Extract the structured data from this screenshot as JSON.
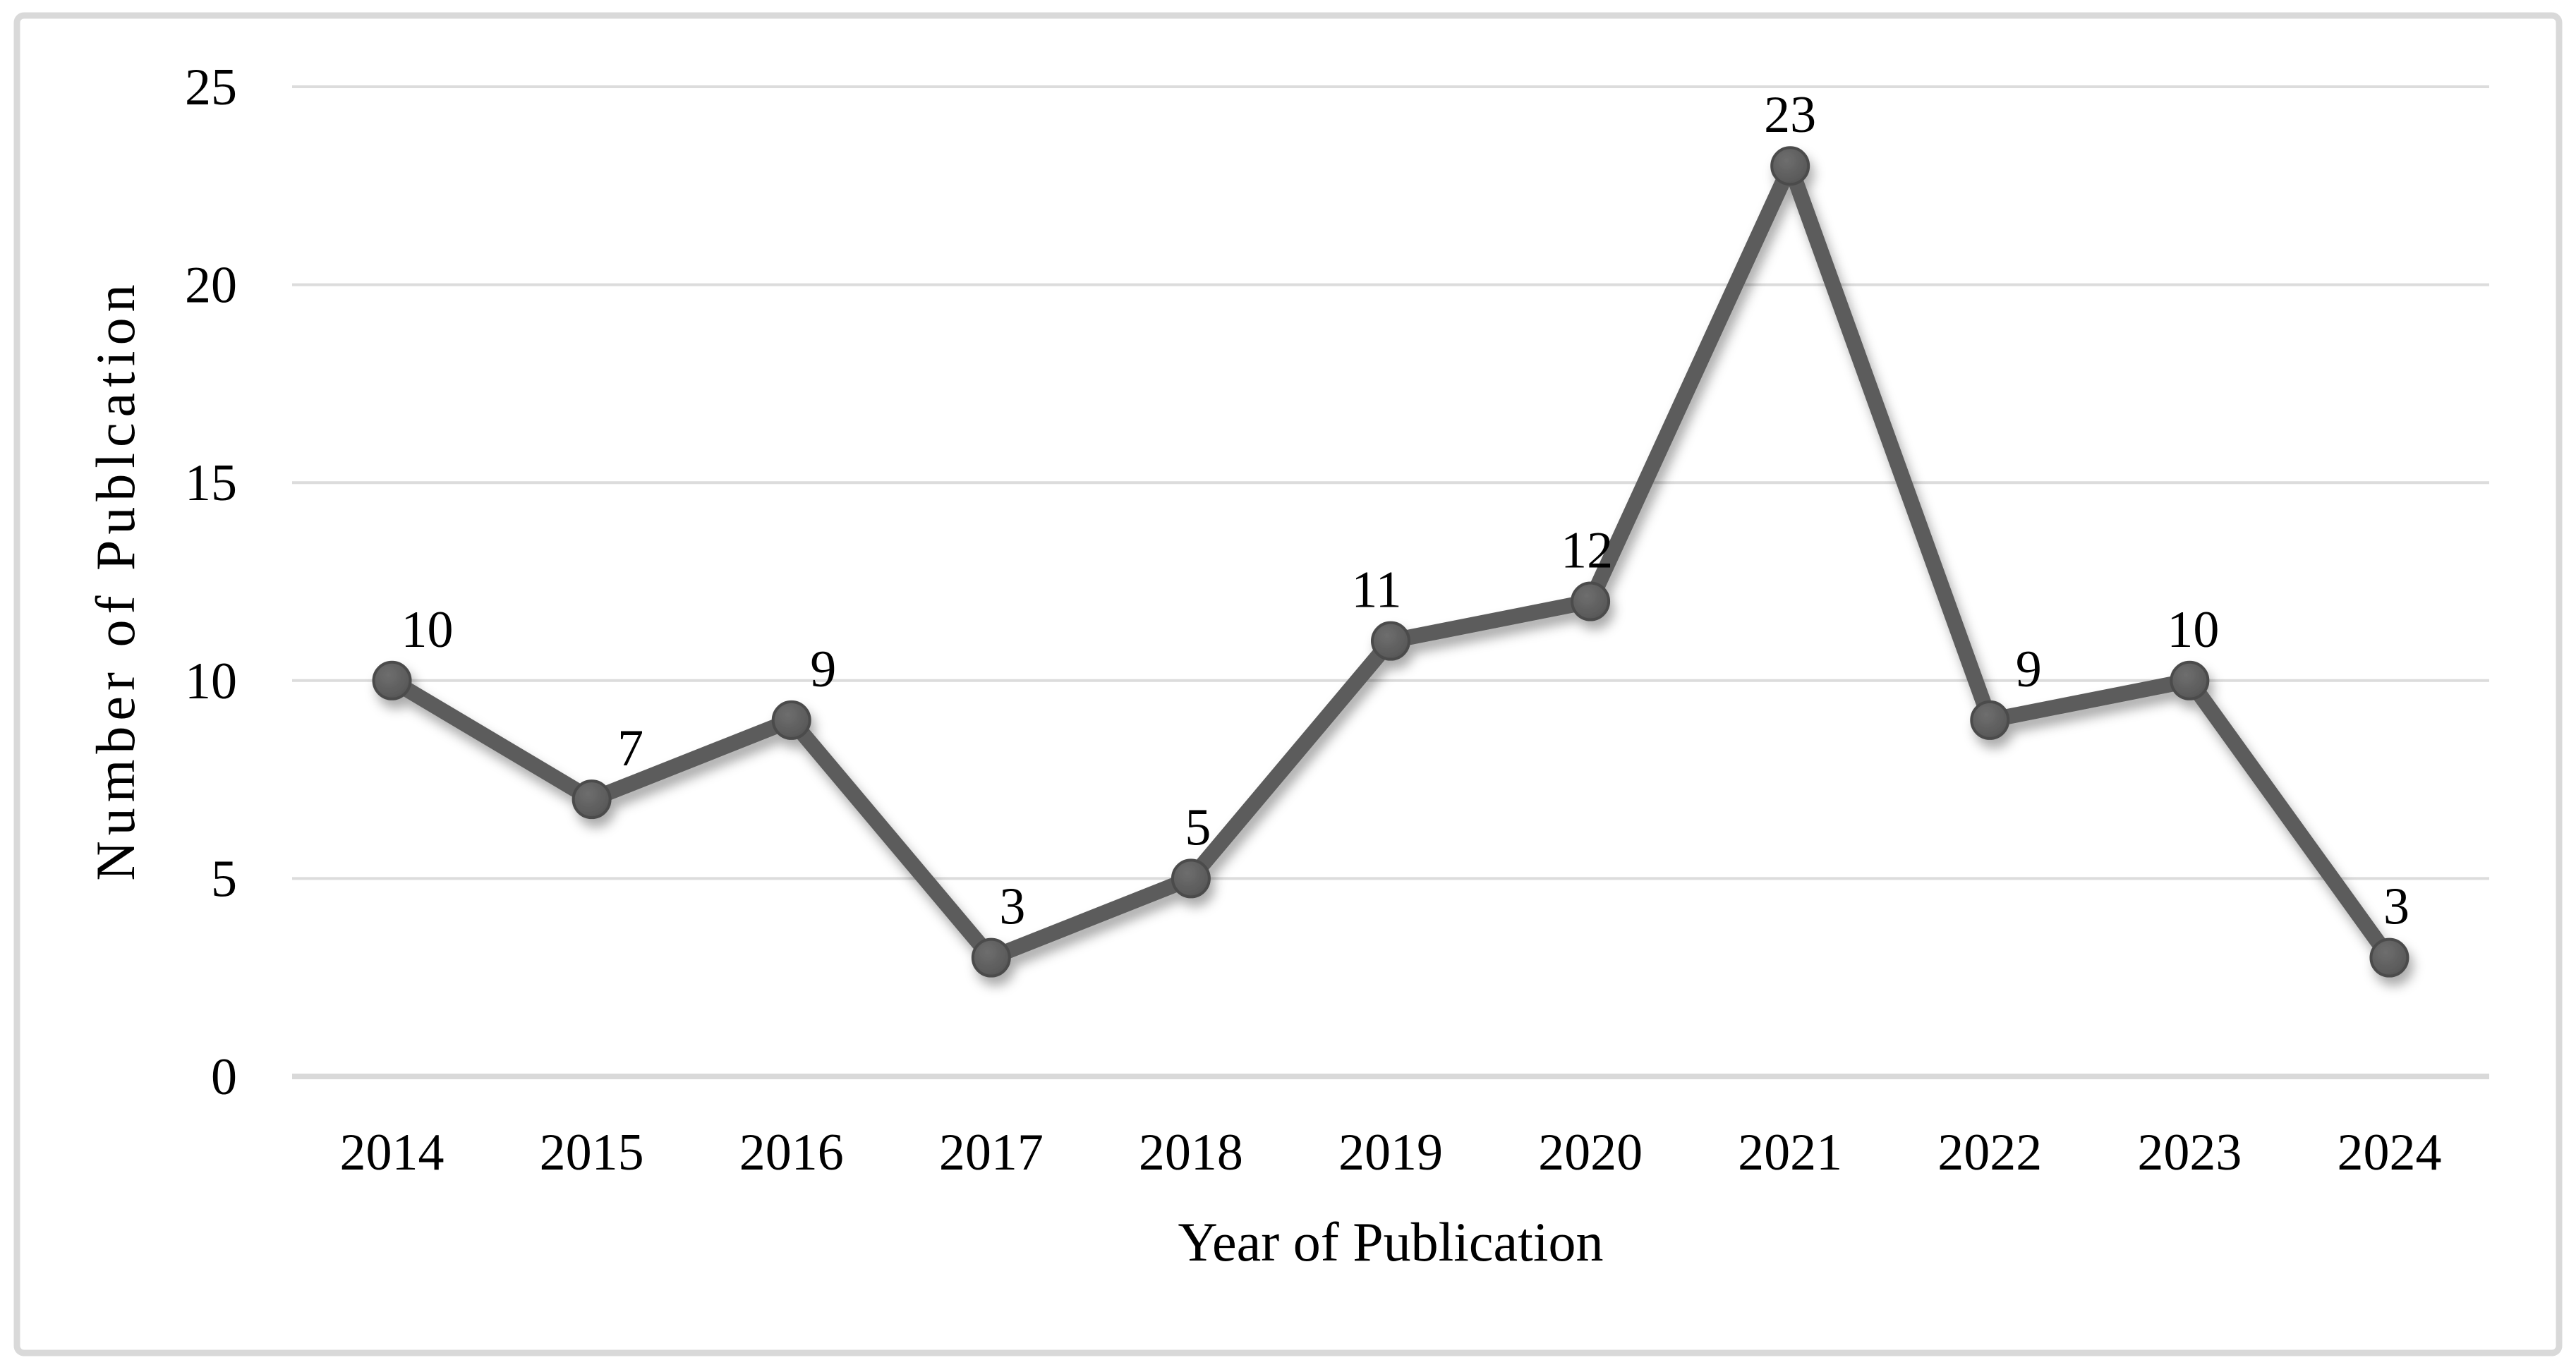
{
  "figure": {
    "background": "#ffffff",
    "frame_border_color": "#d9d9d9"
  },
  "chart_data": {
    "type": "line",
    "title": "",
    "categories": [
      "2014",
      "2015",
      "2016",
      "2017",
      "2018",
      "2019",
      "2020",
      "2021",
      "2022",
      "2023",
      "2024"
    ],
    "values": [
      10,
      7,
      9,
      3,
      5,
      11,
      12,
      23,
      9,
      10,
      3
    ],
    "xlabel": "Year of Publication",
    "ylabel": "Number of Publcation",
    "yticks": [
      0,
      5,
      10,
      15,
      20,
      25
    ],
    "ylim": [
      0,
      25
    ],
    "grid": true,
    "legend": "none",
    "data_labels_shown": true,
    "colors": {
      "line": "#5b5b5b",
      "marker_fill": "#5d5d5d",
      "marker_edge": "#4b4b4b",
      "gridline": "#dcdcdc",
      "axis_line": "#d9d9d9",
      "label_text": "#000000",
      "frame_border": "#d9d9d9",
      "background": "#ffffff"
    },
    "layout": {
      "label_dx": [
        50,
        55,
        45,
        30,
        10,
        -20,
        -5,
        0,
        55,
        5,
        10
      ],
      "label_dy": -48,
      "legend_position": "none",
      "gridlines_horizontal_only": true
    }
  }
}
